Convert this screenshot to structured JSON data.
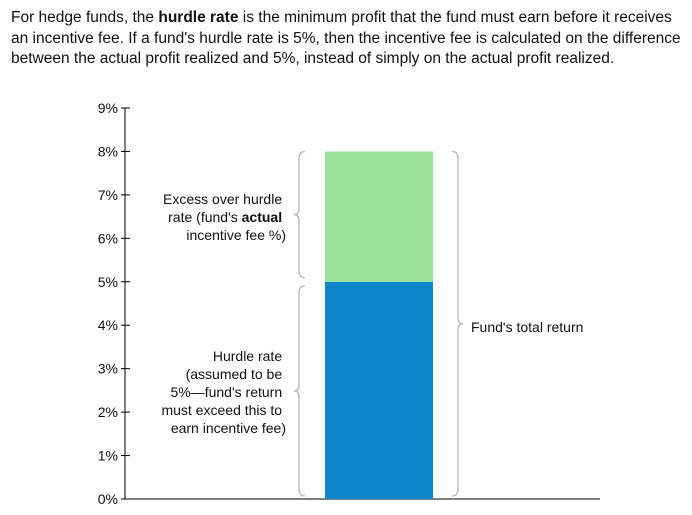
{
  "intro": {
    "before": "For hedge funds, the ",
    "bold": "hurdle rate",
    "after": " is the minimum profit that the fund must earn before it receives an incentive fee. If a fund's hurdle rate is 5%, then the incentive fee is calculated on the difference between the actual profit realized and 5%, instead of simply on the actual profit realized."
  },
  "chart_data": {
    "type": "bar",
    "stacked": true,
    "categories": [
      ""
    ],
    "series": [
      {
        "values": [
          5
        ],
        "color": "#0f86c8"
      },
      {
        "values": [
          3
        ],
        "color": "#9be29a"
      }
    ],
    "ylim": [
      0,
      9
    ],
    "yticks": [
      "0%",
      "1%",
      "2%",
      "3%",
      "4%",
      "5%",
      "6%",
      "7%",
      "8%",
      "9%"
    ],
    "grid": false,
    "annotations": {
      "excess": {
        "pre": "Excess over hurdle",
        "line2": "rate (fund's ",
        "line2_bold": "actual",
        "line3": "incentive fee %)"
      },
      "hurdle": [
        "Hurdle rate",
        "(assumed to be",
        "5%—fund's return",
        "must exceed this to",
        "earn incentive fee)"
      ],
      "total": "Fund's total return"
    }
  }
}
